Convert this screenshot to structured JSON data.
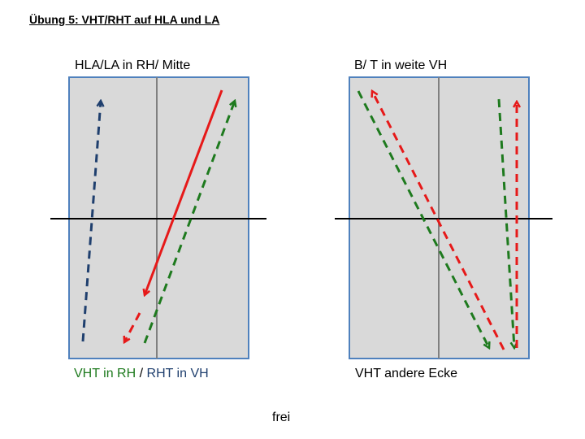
{
  "title": "Übung 5: VHT/RHT auf HLA und LA",
  "left_panel": {
    "label": "HLA/LA in RH/ Mitte",
    "caption_green": "VHT in RH",
    "caption_sep": " / ",
    "caption_blue": "RHT in VH"
  },
  "right_panel": {
    "label": "B/ T in weite VH",
    "caption": "VHT andere Ecke"
  },
  "footer": "frei",
  "colors": {
    "court_fill": "#d9d9d9",
    "court_border": "#4f81bd",
    "center_line": "#808080",
    "net_line": "#000000",
    "red": "#e61919",
    "green": "#1e7a1e",
    "blue": "#1f3f6e"
  }
}
